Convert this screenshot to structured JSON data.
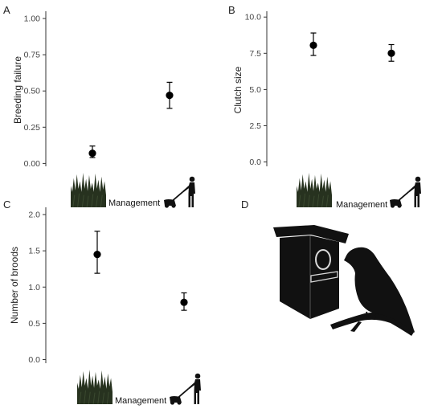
{
  "panel_labels": {
    "a": "A",
    "b": "B",
    "c": "C",
    "d": "D"
  },
  "chart_data": [
    {
      "type": "scatter",
      "panel": "A",
      "title": "",
      "xlabel": "Management",
      "ylabel": "Breeding failure",
      "categories": [
        "unmanaged grassland",
        "mown grassland"
      ],
      "series": [
        {
          "values": [
            0.07,
            0.47
          ],
          "error_low": [
            0.04,
            0.38
          ],
          "error_high": [
            0.12,
            0.56
          ]
        }
      ],
      "ylim": [
        -0.02,
        1.05
      ],
      "yticks": [
        0,
        0.25,
        0.5,
        0.75,
        1.0
      ],
      "ytick_labels": [
        "0.00",
        "0.25",
        "0.50",
        "0.75",
        "1.00"
      ],
      "grid": false
    },
    {
      "type": "scatter",
      "panel": "B",
      "title": "",
      "xlabel": "Management",
      "ylabel": "Clutch size",
      "categories": [
        "unmanaged grassland",
        "mown grassland"
      ],
      "series": [
        {
          "values": [
            8.05,
            7.5
          ],
          "error_low": [
            7.35,
            6.95
          ],
          "error_high": [
            8.9,
            8.1
          ]
        }
      ],
      "ylim": [
        -0.3,
        10.4
      ],
      "yticks": [
        0,
        2.5,
        5.0,
        7.5,
        10.0
      ],
      "ytick_labels": [
        "0.0",
        "2.5",
        "5.0",
        "7.5",
        "10.0"
      ],
      "grid": false
    },
    {
      "type": "scatter",
      "panel": "C",
      "title": "",
      "xlabel": "Management",
      "ylabel": "Number of broods",
      "categories": [
        "unmanaged grassland",
        "mown grassland"
      ],
      "series": [
        {
          "values": [
            1.45,
            0.79
          ],
          "error_low": [
            1.19,
            0.68
          ],
          "error_high": [
            1.77,
            0.92
          ]
        }
      ],
      "ylim": [
        -0.05,
        2.1
      ],
      "yticks": [
        0,
        0.5,
        1.0,
        1.5,
        2.0
      ],
      "ytick_labels": [
        "0.0",
        "0.5",
        "1.0",
        "1.5",
        "2.0"
      ],
      "grid": false
    }
  ],
  "colors": {
    "axis": "#333333",
    "marker": "#000000",
    "grass": "#27321f",
    "silhouette": "#111111"
  },
  "icons": [
    "grass-icon",
    "lawnmower-person-icon",
    "nest-box-icon",
    "bird-icon"
  ]
}
